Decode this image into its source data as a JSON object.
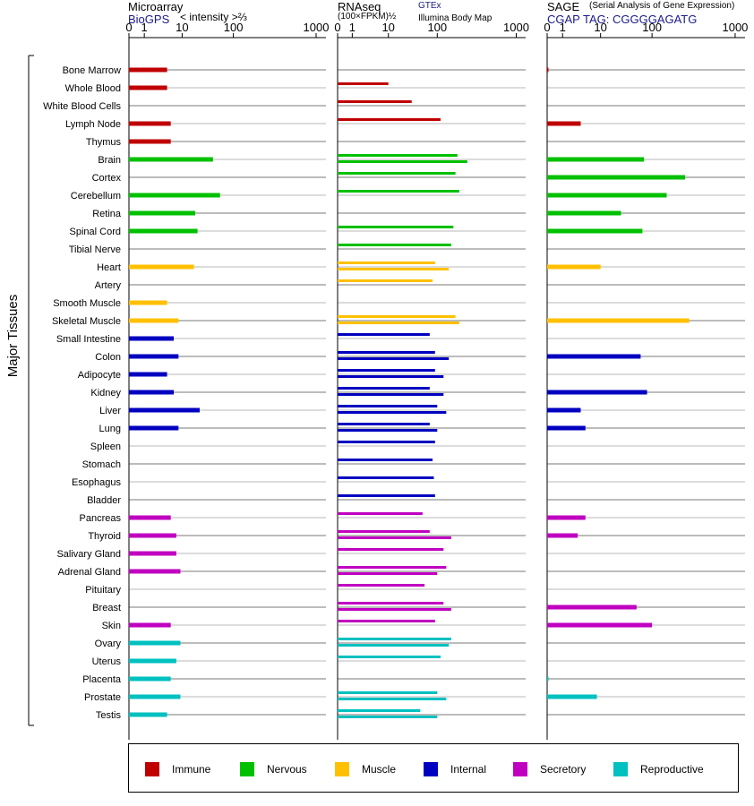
{
  "headers": {
    "microarray_title": "Microarray",
    "microarray_source": "BioGPS",
    "microarray_scale": "< intensity >⅔",
    "rnaseq_title": "RNAseq",
    "rnaseq_scale": "(100×FPKM)½",
    "rnaseq_source1": "GTEx",
    "rnaseq_source2": "Illumina Body Map",
    "sage_title": "SAGE",
    "sage_subtitle": "(Serial Analysis of Gene Expression)",
    "sage_tag": "CGAP TAG: CGGGGAGATG"
  },
  "y_axis_label": "Major Tissues",
  "legend": [
    {
      "label": "Immune",
      "color": "#c00000"
    },
    {
      "label": "Nervous",
      "color": "#00c000"
    },
    {
      "label": "Muscle",
      "color": "#ffc000"
    },
    {
      "label": "Internal",
      "color": "#0000c0"
    },
    {
      "label": "Secretory",
      "color": "#c000c0"
    },
    {
      "label": "Reproductive",
      "color": "#00c0c0"
    }
  ],
  "chart_data": {
    "type": "bar",
    "orientation": "horizontal",
    "x_scale": "nonlinear",
    "x_ticks": [
      "0",
      "1",
      "10",
      "100",
      "1000"
    ],
    "categories": [
      "Bone Marrow",
      "Whole Blood",
      "White Blood Cells",
      "Lymph Node",
      "Thymus",
      "Brain",
      "Cortex",
      "Cerebellum",
      "Retina",
      "Spinal Cord",
      "Tibial Nerve",
      "Heart",
      "Artery",
      "Smooth Muscle",
      "Skeletal Muscle",
      "Small Intestine",
      "Colon",
      "Adipocyte",
      "Kidney",
      "Liver",
      "Lung",
      "Spleen",
      "Stomach",
      "Esophagus",
      "Bladder",
      "Pancreas",
      "Thyroid",
      "Salivary Gland",
      "Adrenal Gland",
      "Pituitary",
      "Breast",
      "Skin",
      "Ovary",
      "Uterus",
      "Placenta",
      "Prostate",
      "Testis"
    ],
    "groups": [
      "Immune",
      "Immune",
      "Immune",
      "Immune",
      "Immune",
      "Nervous",
      "Nervous",
      "Nervous",
      "Nervous",
      "Nervous",
      "Nervous",
      "Muscle",
      "Muscle",
      "Muscle",
      "Muscle",
      "Internal",
      "Internal",
      "Internal",
      "Internal",
      "Internal",
      "Internal",
      "Internal",
      "Internal",
      "Internal",
      "Internal",
      "Secretory",
      "Secretory",
      "Secretory",
      "Secretory",
      "Secretory",
      "Secretory",
      "Secretory",
      "Reproductive",
      "Reproductive",
      "Reproductive",
      "Reproductive",
      "Reproductive"
    ],
    "series": [
      {
        "name": "Microarray",
        "values": [
          4,
          4,
          null,
          5,
          5,
          40,
          null,
          55,
          18,
          20,
          null,
          17,
          null,
          4,
          8,
          6,
          8,
          4,
          6,
          22,
          8,
          null,
          null,
          null,
          null,
          5,
          7,
          7,
          9,
          null,
          null,
          5,
          9,
          7,
          5,
          9,
          4
        ]
      },
      {
        "name": "RNAseq GTEx",
        "values": [
          null,
          10,
          30,
          110,
          null,
          180,
          170,
          190,
          null,
          160,
          150,
          90,
          80,
          null,
          170,
          70,
          90,
          90,
          70,
          100,
          70,
          90,
          80,
          85,
          90,
          50,
          70,
          120,
          130,
          55,
          120,
          90,
          150,
          110,
          null,
          100,
          45
        ]
      },
      {
        "name": "RNAseq Illumina Body Map",
        "values": [
          null,
          null,
          null,
          null,
          null,
          240,
          null,
          null,
          null,
          null,
          null,
          140,
          null,
          null,
          190,
          null,
          140,
          120,
          120,
          130,
          100,
          null,
          null,
          null,
          null,
          null,
          150,
          null,
          100,
          null,
          150,
          null,
          140,
          null,
          null,
          130,
          100
        ]
      },
      {
        "name": "SAGE",
        "values": [
          0.05,
          null,
          null,
          3,
          null,
          70,
          250,
          150,
          25,
          65,
          null,
          10,
          null,
          null,
          280,
          null,
          60,
          null,
          80,
          3,
          4,
          null,
          null,
          null,
          null,
          4,
          2.5,
          null,
          null,
          null,
          50,
          100,
          null,
          null,
          0.05,
          8,
          null
        ]
      }
    ]
  }
}
